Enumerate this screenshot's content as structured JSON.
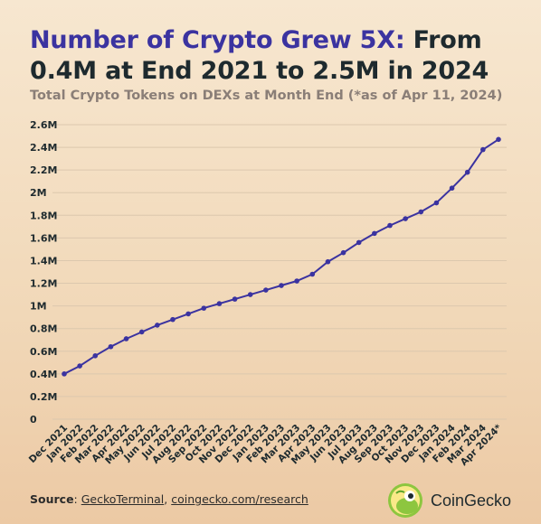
{
  "header": {
    "title_highlight": "Number of Crypto Grew 5X:",
    "title_rest": " From 0.4M at End 2021 to 2.5M in 2024",
    "subtitle": "Total Crypto Tokens on DEXs at Month End (*as of Apr 11, 2024)"
  },
  "footer": {
    "source_label": "Source",
    "source_sep": ": ",
    "link1": "GeckoTerminal",
    "comma": ", ",
    "link2": "coingecko.com/research",
    "brand": "CoinGecko"
  },
  "colors": {
    "line": "#3b33a0",
    "highlight": "#3b33a0",
    "grid": "#dcc8ae",
    "text": "#1e2a2e"
  },
  "chart_data": {
    "type": "line",
    "categories": [
      "Dec 2021",
      "Jan 2022",
      "Feb 2022",
      "Mar 2022",
      "Apr 2022",
      "May 2022",
      "Jun 2022",
      "Jul 2022",
      "Aug 2022",
      "Sep 2022",
      "Oct 2022",
      "Nov 2022",
      "Dec 2022",
      "Jan 2023",
      "Feb 2023",
      "Mar 2023",
      "Apr 2023",
      "May 2023",
      "Jun 2023",
      "Jul 2023",
      "Aug 2023",
      "Sep 2023",
      "Oct 2023",
      "Nov 2023",
      "Dec 2023",
      "Jan 2024",
      "Feb 2024",
      "Mar 2024",
      "Apr 2024*"
    ],
    "series": [
      {
        "values": [
          0.4,
          0.47,
          0.56,
          0.64,
          0.71,
          0.77,
          0.83,
          0.88,
          0.93,
          0.98,
          1.02,
          1.06,
          1.1,
          1.14,
          1.18,
          1.22,
          1.28,
          1.39,
          1.47,
          1.56,
          1.64,
          1.71,
          1.77,
          1.83,
          1.91,
          2.04,
          2.18,
          2.38,
          2.47
        ]
      }
    ],
    "yticks": [
      "0",
      "0.2M",
      "0.4M",
      "0.6M",
      "0.8M",
      "1M",
      "1.2M",
      "1.4M",
      "1.6M",
      "1.8M",
      "2M",
      "2.2M",
      "2.4M",
      "2.6M"
    ],
    "ylim": [
      0,
      2.6
    ],
    "grid": true,
    "legend": "none"
  }
}
